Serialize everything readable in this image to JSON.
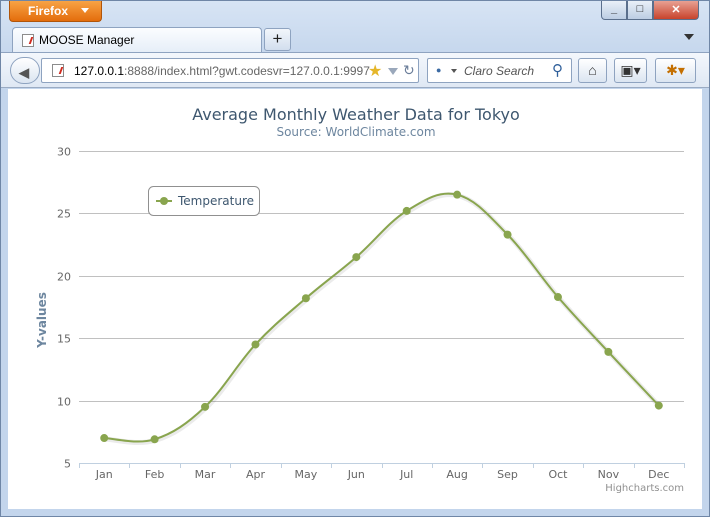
{
  "browser": {
    "menu_label": "Firefox",
    "tab_title": "MOOSE Manager",
    "new_tab_glyph": "+",
    "url_host": "127.0.0.1",
    "url_rest": ":8888/index.html?gwt.codesvr=127.0.0.1:9997",
    "search_placeholder": "Claro Search",
    "icons": [
      "back-arrow-icon",
      "bookmark-star-icon",
      "reload-icon",
      "search-icon",
      "home-icon",
      "bookmarks-icon",
      "firebug-icon"
    ]
  },
  "chart_data": {
    "type": "line",
    "title": "Average Monthly Weather Data for Tokyo",
    "subtitle": "Source: WorldClimate.com",
    "xlabel": "",
    "ylabel": "Y-values",
    "categories": [
      "Jan",
      "Feb",
      "Mar",
      "Apr",
      "May",
      "Jun",
      "Jul",
      "Aug",
      "Sep",
      "Oct",
      "Nov",
      "Dec"
    ],
    "series": [
      {
        "name": "Temperature",
        "values": [
          7.0,
          6.9,
          9.5,
          14.5,
          18.2,
          21.5,
          25.2,
          26.5,
          23.3,
          18.3,
          13.9,
          9.6
        ],
        "color": "#89a54e"
      }
    ],
    "ylim": [
      5,
      30
    ],
    "yticks": [
      "5",
      "10",
      "15",
      "20",
      "25",
      "30"
    ],
    "grid": true,
    "legend_placement": "top-left",
    "credits": "Highcharts.com"
  }
}
